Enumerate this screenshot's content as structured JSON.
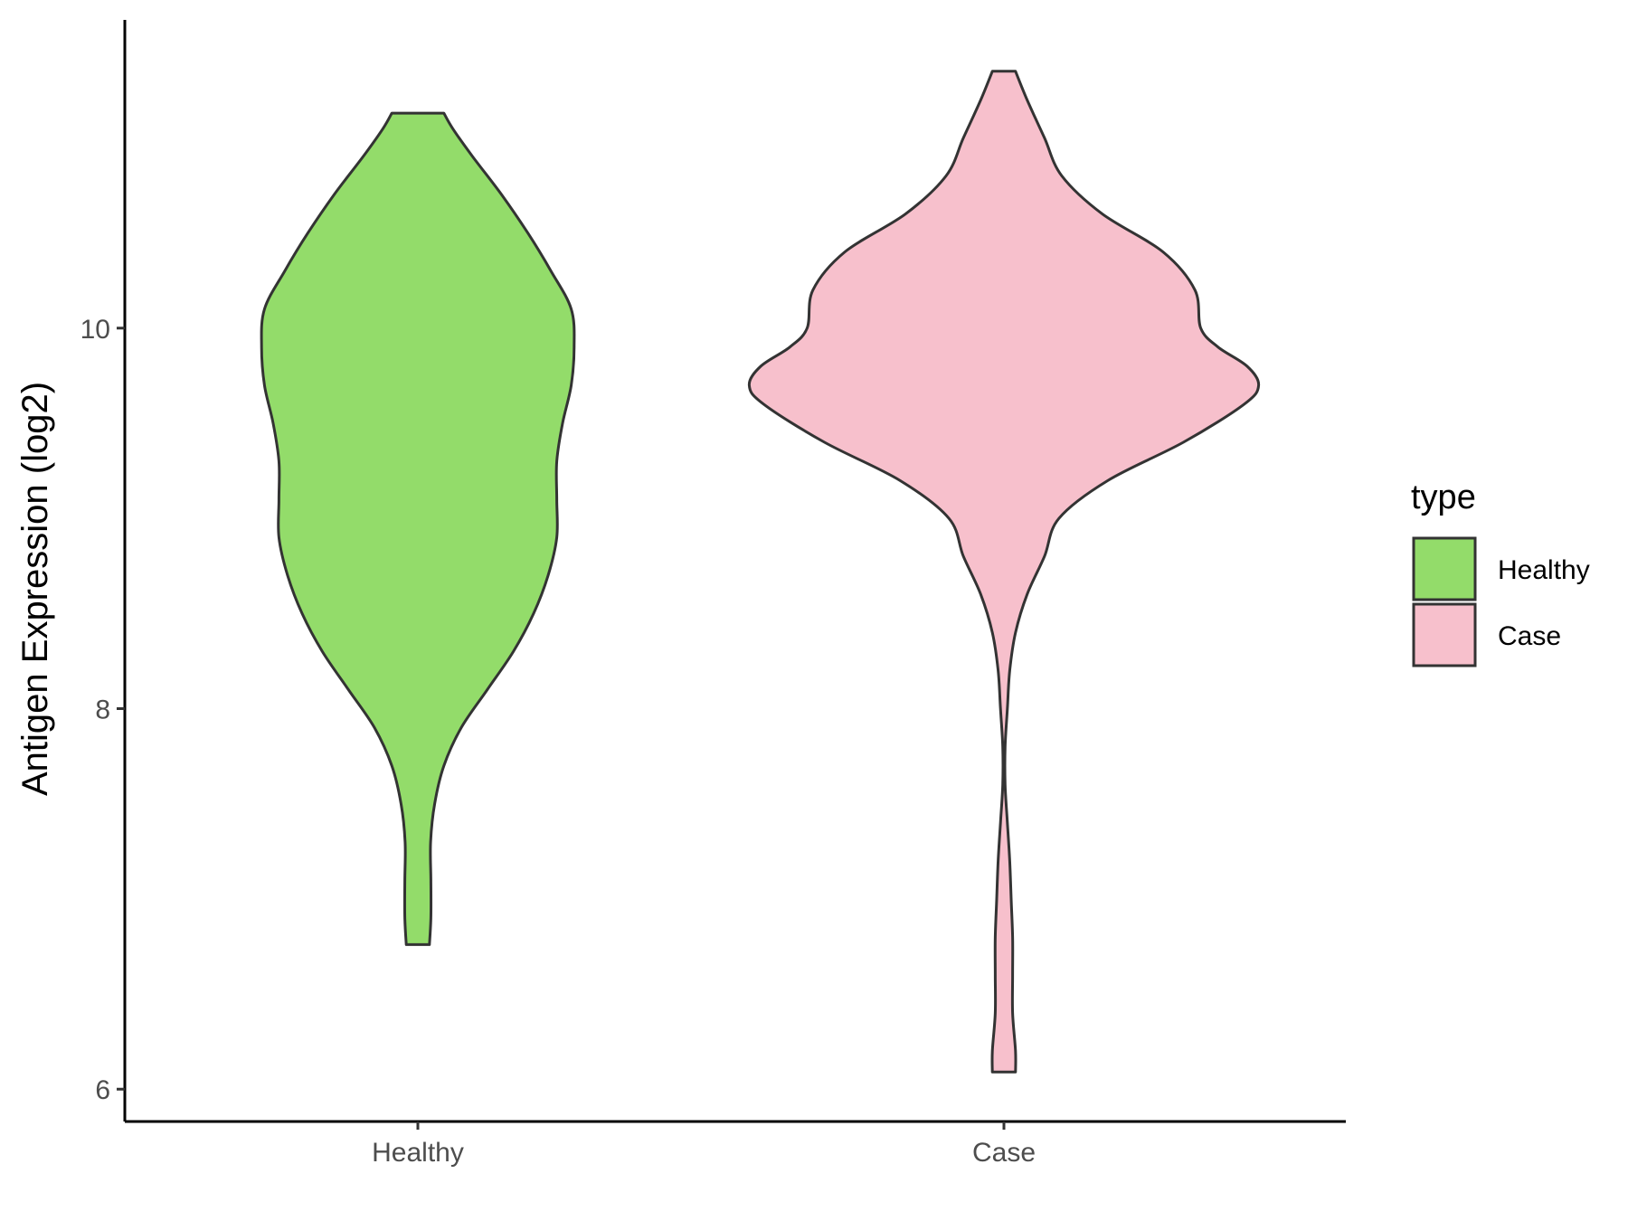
{
  "chart_data": {
    "type": "violin",
    "title": "",
    "xlabel": "",
    "ylabel": "Antigen Expression (log2)",
    "categories": [
      "Healthy",
      "Case"
    ],
    "ylim": [
      5.83,
      11.62
    ],
    "yticks": [
      6,
      8,
      10
    ],
    "grid": false,
    "legend": {
      "title": "type",
      "position": "right",
      "entries": [
        {
          "label": "Healthy",
          "color": "#93DC6A"
        },
        {
          "label": "Case",
          "color": "#F7C0CC"
        }
      ]
    },
    "series": [
      {
        "name": "Healthy",
        "color": "#93DC6A",
        "ymin": 6.76,
        "ymax": 11.13,
        "profile": [
          [
            6.76,
            0.04
          ],
          [
            6.9,
            0.045
          ],
          [
            7.1,
            0.045
          ],
          [
            7.3,
            0.044
          ],
          [
            7.5,
            0.058
          ],
          [
            7.7,
            0.09
          ],
          [
            7.9,
            0.15
          ],
          [
            8.1,
            0.24
          ],
          [
            8.3,
            0.33
          ],
          [
            8.5,
            0.4
          ],
          [
            8.7,
            0.45
          ],
          [
            8.9,
            0.48
          ],
          [
            9.1,
            0.48
          ],
          [
            9.3,
            0.48
          ],
          [
            9.5,
            0.5
          ],
          [
            9.7,
            0.53
          ],
          [
            9.9,
            0.54
          ],
          [
            10.1,
            0.53
          ],
          [
            10.3,
            0.46
          ],
          [
            10.5,
            0.38
          ],
          [
            10.7,
            0.29
          ],
          [
            10.9,
            0.19
          ],
          [
            11.05,
            0.12
          ],
          [
            11.13,
            0.09
          ]
        ]
      },
      {
        "name": "Case",
        "color": "#F7C0CC",
        "ymin": 6.09,
        "ymax": 11.35,
        "profile": [
          [
            6.09,
            0.04
          ],
          [
            6.2,
            0.04
          ],
          [
            6.4,
            0.03
          ],
          [
            6.6,
            0.03
          ],
          [
            6.8,
            0.03
          ],
          [
            7.0,
            0.025
          ],
          [
            7.2,
            0.02
          ],
          [
            7.4,
            0.012
          ],
          [
            7.6,
            0.004
          ],
          [
            7.8,
            0.004
          ],
          [
            8.0,
            0.012
          ],
          [
            8.2,
            0.02
          ],
          [
            8.4,
            0.04
          ],
          [
            8.6,
            0.08
          ],
          [
            8.8,
            0.14
          ],
          [
            9.0,
            0.19
          ],
          [
            9.2,
            0.36
          ],
          [
            9.4,
            0.62
          ],
          [
            9.6,
            0.83
          ],
          [
            9.7,
            0.88
          ],
          [
            9.8,
            0.84
          ],
          [
            9.9,
            0.74
          ],
          [
            10.0,
            0.68
          ],
          [
            10.2,
            0.66
          ],
          [
            10.4,
            0.55
          ],
          [
            10.6,
            0.34
          ],
          [
            10.8,
            0.2
          ],
          [
            11.0,
            0.14
          ],
          [
            11.2,
            0.08
          ],
          [
            11.35,
            0.04
          ]
        ]
      }
    ]
  }
}
